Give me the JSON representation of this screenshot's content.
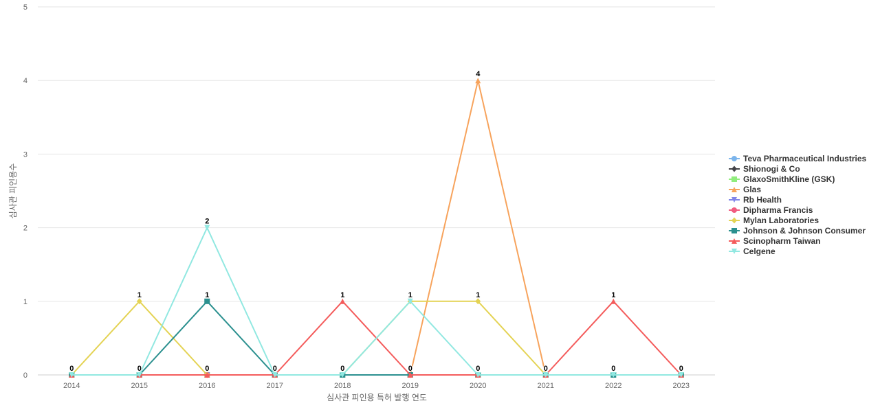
{
  "chart_data": {
    "type": "line",
    "title": "",
    "xlabel": "심사관 피인용 특허 발행 연도",
    "ylabel": "심사관 피인용수",
    "ylim": [
      0,
      5
    ],
    "yticks": [
      0,
      1,
      2,
      3,
      4,
      5
    ],
    "x": [
      "2014",
      "2015",
      "2016",
      "2017",
      "2018",
      "2019",
      "2020",
      "2021",
      "2022",
      "2023"
    ],
    "legend_position": "right",
    "grid": true,
    "series": [
      {
        "name": "Teva Pharmaceutical Industries",
        "color": "#7cb5ec",
        "marker": "circle",
        "values": [
          0,
          0,
          0,
          0,
          0,
          0,
          0,
          0,
          0,
          0
        ]
      },
      {
        "name": "Shionogi & Co",
        "color": "#434348",
        "marker": "diamond",
        "values": [
          0,
          0,
          0,
          0,
          0,
          0,
          0,
          0,
          0,
          0
        ]
      },
      {
        "name": "GlaxoSmithKline (GSK)",
        "color": "#90ed7d",
        "marker": "square",
        "values": [
          0,
          0,
          0,
          0,
          0,
          0,
          0,
          0,
          0,
          0
        ]
      },
      {
        "name": "Glas",
        "color": "#f7a35c",
        "marker": "triangle",
        "values": [
          0,
          0,
          0,
          0,
          0,
          0,
          4,
          0,
          0,
          0
        ]
      },
      {
        "name": "Rb Health",
        "color": "#8085e9",
        "marker": "triangle-down",
        "values": [
          0,
          0,
          0,
          0,
          0,
          0,
          0,
          0,
          0,
          0
        ]
      },
      {
        "name": "Dipharma Francis",
        "color": "#f15c80",
        "marker": "circle",
        "values": [
          0,
          0,
          0,
          0,
          0,
          0,
          0,
          0,
          0,
          0
        ]
      },
      {
        "name": "Mylan Laboratories",
        "color": "#e4d354",
        "marker": "diamond",
        "values": [
          0,
          1,
          0,
          0,
          0,
          1,
          1,
          0,
          0,
          0
        ]
      },
      {
        "name": "Johnson & Johnson Consumer",
        "color": "#2b908f",
        "marker": "square",
        "values": [
          0,
          0,
          1,
          0,
          0,
          0,
          0,
          0,
          0,
          0
        ]
      },
      {
        "name": "Scinopharm Taiwan",
        "color": "#f45b5b",
        "marker": "triangle",
        "values": [
          0,
          0,
          0,
          0,
          1,
          0,
          0,
          0,
          1,
          0
        ]
      },
      {
        "name": "Celgene",
        "color": "#91e8e1",
        "marker": "triangle-down",
        "values": [
          0,
          0,
          2,
          0,
          0,
          1,
          0,
          0,
          0,
          0
        ]
      }
    ],
    "data_labels": [
      {
        "x": "2014",
        "text": "0"
      },
      {
        "x": "2015",
        "text": "1"
      },
      {
        "x": "2015",
        "text": "0"
      },
      {
        "x": "2016",
        "text": "2"
      },
      {
        "x": "2016",
        "text": "1"
      },
      {
        "x": "2016",
        "text": "0"
      },
      {
        "x": "2017",
        "text": "0"
      },
      {
        "x": "2018",
        "text": "1"
      },
      {
        "x": "2018",
        "text": "0"
      },
      {
        "x": "2019",
        "text": "1"
      },
      {
        "x": "2019",
        "text": "0"
      },
      {
        "x": "2020",
        "text": "4"
      },
      {
        "x": "2020",
        "text": "1"
      },
      {
        "x": "2020",
        "text": "0"
      },
      {
        "x": "2021",
        "text": "0"
      },
      {
        "x": "2022",
        "text": "1"
      },
      {
        "x": "2022",
        "text": "0"
      },
      {
        "x": "2023",
        "text": "0"
      }
    ]
  }
}
